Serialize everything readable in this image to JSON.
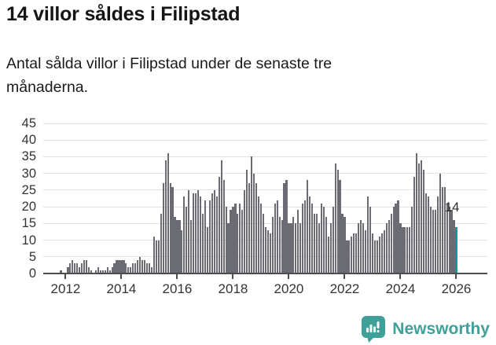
{
  "header": {
    "title": "14 villor såldes i Filipstad",
    "subtitle": "Antal sålda villor i Filipstad under de senaste tre månaderna."
  },
  "chart_data": {
    "type": "bar",
    "title": "14 villor såldes i Filipstad",
    "subtitle": "Antal sålda villor i Filipstad under de senaste tre månaderna.",
    "xlabel": "",
    "ylabel": "",
    "frequency": "monthly",
    "start_month": "2011-05",
    "end_month": "2026-01",
    "ylim": [
      0,
      47
    ],
    "y_ticks": [
      0,
      5,
      10,
      15,
      20,
      25,
      30,
      35,
      40,
      45
    ],
    "x_tick_years": [
      2012,
      2014,
      2016,
      2018,
      2020,
      2022,
      2024,
      2026
    ],
    "grid": true,
    "values": [
      0,
      0,
      0,
      0,
      0,
      0,
      1,
      0,
      0,
      2,
      3,
      4,
      3,
      3,
      2,
      3,
      4,
      4,
      2,
      1,
      0,
      1,
      2,
      1,
      1,
      1,
      2,
      1,
      2,
      3,
      4,
      4,
      4,
      4,
      3,
      2,
      2,
      3,
      3,
      4,
      5,
      4,
      4,
      3,
      3,
      2,
      11,
      10,
      10,
      18,
      27,
      34,
      36,
      27,
      26,
      17,
      16,
      16,
      13,
      23,
      20,
      25,
      16,
      24,
      24,
      25,
      23,
      18,
      22,
      14,
      22,
      24,
      25,
      23,
      29,
      34,
      28,
      20,
      15,
      19,
      20,
      21,
      18,
      21,
      19,
      25,
      31,
      27,
      35,
      30,
      27,
      23,
      21,
      18,
      14,
      13,
      12,
      17,
      21,
      22,
      17,
      16,
      27,
      28,
      15,
      15,
      17,
      15,
      19,
      15,
      21,
      22,
      28,
      23,
      21,
      18,
      18,
      15,
      21,
      20,
      17,
      11,
      15,
      20,
      33,
      31,
      28,
      18,
      17,
      10,
      10,
      11,
      12,
      12,
      15,
      16,
      15,
      13,
      23,
      20,
      12,
      10,
      10,
      11,
      12,
      13,
      15,
      16,
      18,
      20,
      21,
      22,
      15,
      14,
      14,
      14,
      14,
      20,
      29,
      36,
      33,
      34,
      31,
      24,
      23,
      20,
      19,
      19,
      23,
      30,
      26,
      26,
      21,
      20,
      19,
      16,
      14
    ],
    "highlight_last": true,
    "highlight_value": 14,
    "bar_color": "#6b6b74",
    "highlight_color": "#0c9a93",
    "legend_position": "none"
  },
  "annotation": {
    "last_value_label": "14"
  },
  "footer": {
    "brand": "Newsworthy"
  },
  "colors": {
    "background": "#ffffff",
    "bar": "#6b6b74",
    "highlight": "#0c9a93",
    "gridline": "#e2e2e2",
    "axis": "#4d4d4d",
    "tick_label": "#333333",
    "title": "#151515",
    "brand_teal": "#3f9f99"
  }
}
